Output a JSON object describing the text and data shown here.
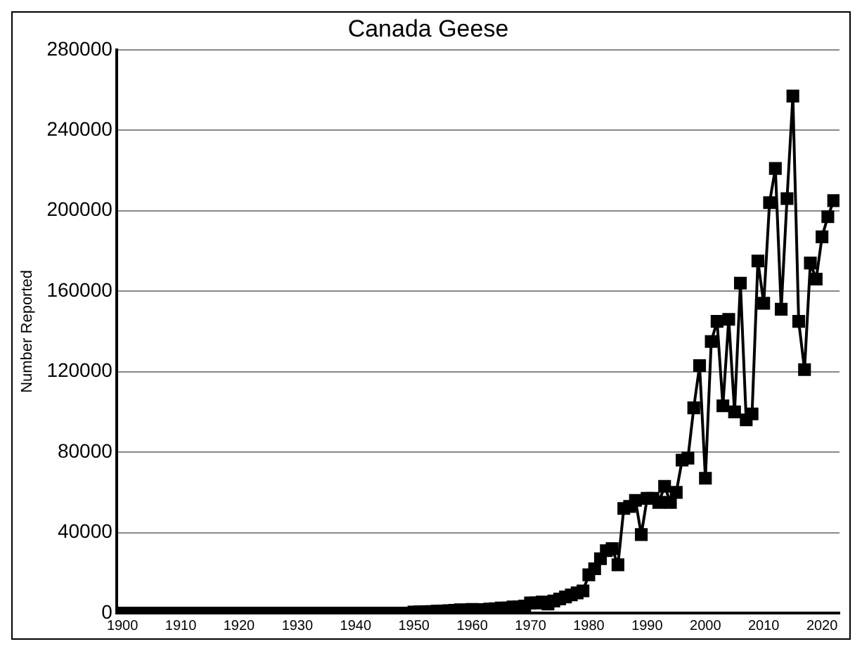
{
  "chart_data": {
    "type": "line",
    "title": "Canada Geese",
    "ylabel": "Number Reported",
    "x": [
      1900,
      1901,
      1902,
      1903,
      1904,
      1905,
      1906,
      1907,
      1908,
      1909,
      1910,
      1911,
      1912,
      1913,
      1914,
      1915,
      1916,
      1917,
      1918,
      1919,
      1920,
      1921,
      1922,
      1923,
      1924,
      1925,
      1926,
      1927,
      1928,
      1929,
      1930,
      1931,
      1932,
      1933,
      1934,
      1935,
      1936,
      1937,
      1938,
      1939,
      1940,
      1941,
      1942,
      1943,
      1944,
      1945,
      1946,
      1947,
      1948,
      1949,
      1950,
      1951,
      1952,
      1953,
      1954,
      1955,
      1956,
      1957,
      1958,
      1959,
      1960,
      1961,
      1962,
      1963,
      1964,
      1965,
      1966,
      1967,
      1968,
      1969,
      1970,
      1971,
      1972,
      1973,
      1974,
      1975,
      1976,
      1977,
      1978,
      1979,
      1980,
      1981,
      1982,
      1983,
      1984,
      1985,
      1986,
      1987,
      1988,
      1989,
      1990,
      1991,
      1992,
      1993,
      1994,
      1995,
      1996,
      1997,
      1998,
      1999,
      2000,
      2001,
      2002,
      2003,
      2004,
      2005,
      2006,
      2007,
      2008,
      2009,
      2010,
      2011,
      2012,
      2013,
      2014,
      2015,
      2016,
      2017,
      2018,
      2019,
      2020,
      2021,
      2022
    ],
    "series": [
      {
        "color": "#000000",
        "values": [
          0,
          0,
          0,
          0,
          0,
          0,
          0,
          0,
          0,
          0,
          0,
          0,
          0,
          0,
          0,
          0,
          0,
          0,
          0,
          0,
          0,
          0,
          0,
          0,
          0,
          0,
          0,
          0,
          0,
          0,
          0,
          0,
          0,
          0,
          0,
          0,
          0,
          0,
          0,
          0,
          0,
          0,
          0,
          0,
          0,
          0,
          0,
          0,
          0,
          0,
          500,
          600,
          700,
          800,
          900,
          1000,
          1200,
          1400,
          1600,
          1500,
          1800,
          1500,
          1700,
          2000,
          2200,
          2500,
          2500,
          3000,
          3000,
          3500,
          5000,
          5000,
          5500,
          4500,
          6000,
          7000,
          8000,
          9000,
          10000,
          11000,
          19000,
          22000,
          27000,
          31000,
          32000,
          24000,
          52000,
          53000,
          56000,
          39000,
          57000,
          57000,
          55000,
          63000,
          55000,
          60000,
          76000,
          77000,
          102000,
          123000,
          67000,
          135000,
          145000,
          103000,
          146000,
          100000,
          164000,
          96000,
          99000,
          175000,
          154000,
          204000,
          221000,
          151000,
          206000,
          257000,
          145000,
          121000,
          174000,
          166000,
          187000,
          197000,
          205000
        ]
      }
    ],
    "xlim": [
      1899,
      2023
    ],
    "xticks": [
      1900,
      1910,
      1920,
      1930,
      1940,
      1950,
      1960,
      1970,
      1980,
      1990,
      2000,
      2010,
      2020
    ],
    "ylim": [
      0,
      280000
    ],
    "yticks": [
      0,
      40000,
      80000,
      120000,
      160000,
      200000,
      240000,
      280000
    ],
    "grid": "y",
    "legend": false,
    "marker": "square",
    "line_style": "solid"
  }
}
